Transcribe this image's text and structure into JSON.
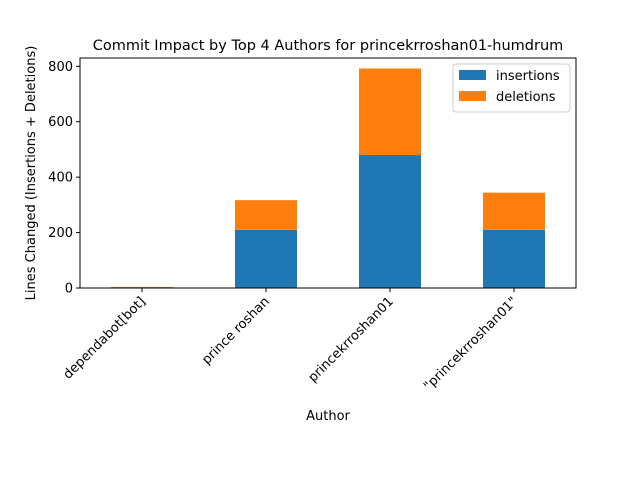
{
  "chart_data": {
    "type": "bar",
    "stacked": true,
    "title": "Commit Impact by Top 4 Authors for princekrroshan01-humdrum",
    "xlabel": "Author",
    "ylabel": "Lines Changed (Insertions + Deletions)",
    "categories": [
      "dependabot[bot]",
      "prince roshan",
      "princekrroshan01",
      "\"princekrroshan01\""
    ],
    "series": [
      {
        "name": "insertions",
        "values": [
          2,
          210,
          480,
          210
        ],
        "color": "#1f77b4"
      },
      {
        "name": "deletions",
        "values": [
          2,
          107,
          312,
          134
        ],
        "color": "#ff7f0e"
      }
    ],
    "ylim": [
      0,
      830
    ],
    "yticks": [
      0,
      200,
      400,
      600,
      800
    ],
    "grid": false,
    "legend_position": "top-right"
  }
}
